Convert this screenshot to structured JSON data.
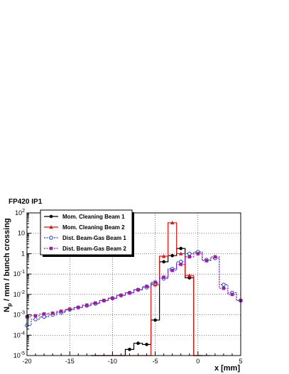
{
  "chart_data": {
    "type": "line",
    "title": "FP420 IP1",
    "xlabel": "x [mm]",
    "ylabel": "N_p / mm / bunch crossing",
    "ylabel_main": "N",
    "ylabel_sub": "p",
    "ylabel_rest": " / mm / bunch crossing",
    "xlim": [
      -20,
      5
    ],
    "ylim": [
      1e-05,
      100
    ],
    "yscale": "log",
    "grid": true,
    "legend_position": "top-left",
    "x_ticks": [
      {
        "v": -20,
        "label": "-20"
      },
      {
        "v": -15,
        "label": "-15"
      },
      {
        "v": -10,
        "label": "-10"
      },
      {
        "v": -5,
        "label": "-5"
      },
      {
        "v": 0,
        "label": "0"
      },
      {
        "v": 5,
        "label": "5"
      }
    ],
    "y_ticks": [
      {
        "v": 1e-05,
        "base": "10",
        "exp": "-5"
      },
      {
        "v": 0.0001,
        "base": "10",
        "exp": "-4"
      },
      {
        "v": 0.001,
        "base": "10",
        "exp": "-3"
      },
      {
        "v": 0.01,
        "base": "10",
        "exp": "-2"
      },
      {
        "v": 0.1,
        "base": "10",
        "exp": "-1"
      },
      {
        "v": 1,
        "base": "1",
        "exp": ""
      },
      {
        "v": 10,
        "base": "10",
        "exp": ""
      },
      {
        "v": 100,
        "base": "10",
        "exp": "2"
      }
    ],
    "bin_width": 1,
    "series": [
      {
        "name": "Mom. Cleaning Beam 1",
        "color": "#000000",
        "marker": "circle-filled",
        "dashed": false,
        "points": [
          [
            -12,
            1e-05
          ],
          [
            -11,
            1e-05
          ],
          [
            -10,
            1e-05
          ],
          [
            -9,
            1e-05
          ],
          [
            -8,
            2e-05
          ],
          [
            -7,
            4e-05
          ],
          [
            -6,
            3.5e-05
          ],
          [
            -5,
            0.00055
          ],
          [
            -4,
            0.4
          ],
          [
            -3,
            0.8
          ],
          [
            -2,
            1.8
          ],
          [
            -1,
            0.065
          ],
          [
            0,
            1e-05
          ]
        ]
      },
      {
        "name": "Mom. Cleaning Beam 2",
        "color": "#e3120b",
        "marker": "triangle-filled",
        "dashed": false,
        "points": [
          [
            -12,
            1e-05
          ],
          [
            -11,
            1e-05
          ],
          [
            -10,
            1e-05
          ],
          [
            -9,
            1e-05
          ],
          [
            -8,
            1e-05
          ],
          [
            -7,
            1e-05
          ],
          [
            -6,
            1e-05
          ],
          [
            -5,
            0.03
          ],
          [
            -4,
            0.75
          ],
          [
            -3,
            33
          ],
          [
            -2,
            1.0
          ],
          [
            -1,
            0.085
          ],
          [
            0,
            1e-05
          ],
          [
            1,
            1e-05
          ]
        ]
      },
      {
        "name": "Dist. Beam-Gas Beam 1",
        "color": "#1f3fbf",
        "marker": "circle-open",
        "dashed": true,
        "points": [
          [
            -20,
            0.0003
          ],
          [
            -19,
            0.0006
          ],
          [
            -18,
            0.0008
          ],
          [
            -17,
            0.001
          ],
          [
            -16,
            0.0013
          ],
          [
            -15,
            0.0018
          ],
          [
            -14,
            0.0023
          ],
          [
            -13,
            0.0028
          ],
          [
            -12,
            0.0035
          ],
          [
            -11,
            0.005
          ],
          [
            -10,
            0.0065
          ],
          [
            -9,
            0.009
          ],
          [
            -8,
            0.012
          ],
          [
            -7,
            0.017
          ],
          [
            -6,
            0.022
          ],
          [
            -5,
            0.035
          ],
          [
            -4,
            0.06
          ],
          [
            -3,
            0.18
          ],
          [
            -2,
            0.4
          ],
          [
            -1,
            1.0
          ],
          [
            0,
            1.2
          ],
          [
            1,
            0.5
          ],
          [
            2,
            0.6
          ],
          [
            3,
            0.03
          ],
          [
            4,
            0.012
          ],
          [
            5,
            0.005
          ]
        ]
      },
      {
        "name": "Dist. Beam-Gas Beam 2",
        "color": "#9b1fa0",
        "marker": "square-filled",
        "dashed": true,
        "points": [
          [
            -20,
            0.0008
          ],
          [
            -19,
            0.0009
          ],
          [
            -18,
            0.0011
          ],
          [
            -17,
            0.0012
          ],
          [
            -16,
            0.0015
          ],
          [
            -15,
            0.0019
          ],
          [
            -14,
            0.0023
          ],
          [
            -13,
            0.003
          ],
          [
            -12,
            0.0038
          ],
          [
            -11,
            0.005
          ],
          [
            -10,
            0.0065
          ],
          [
            -9,
            0.009
          ],
          [
            -8,
            0.012
          ],
          [
            -7,
            0.017
          ],
          [
            -6,
            0.025
          ],
          [
            -5,
            0.04
          ],
          [
            -4,
            0.07
          ],
          [
            -3,
            0.15
          ],
          [
            -2,
            0.3
          ],
          [
            -1,
            0.7
          ],
          [
            0,
            1.0
          ],
          [
            1,
            0.45
          ],
          [
            2,
            0.7
          ],
          [
            3,
            0.02
          ],
          [
            4,
            0.01
          ],
          [
            5,
            0.005
          ]
        ]
      }
    ]
  }
}
